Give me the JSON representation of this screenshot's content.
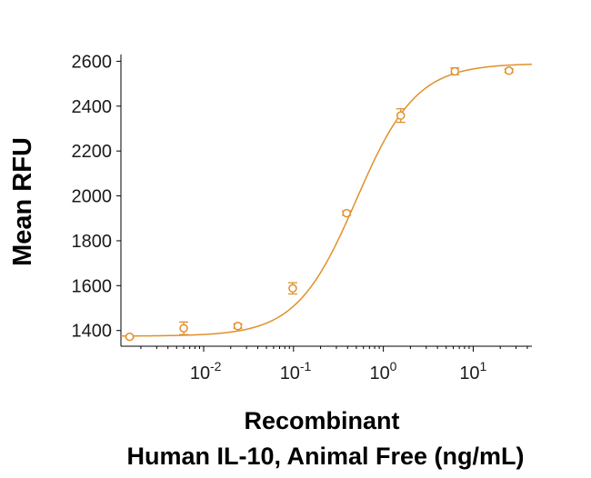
{
  "chart_data": {
    "type": "scatter",
    "x_scale": "log",
    "xlabel_line1": "Recombinant",
    "xlabel_line2": "Human IL-10, Animal Free (ng/mL)",
    "ylabel": "Mean RFU",
    "xlim": [
      0.0012,
      45
    ],
    "ylim": [
      1330,
      2630
    ],
    "y_ticks": [
      1400,
      1600,
      1800,
      2000,
      2200,
      2400,
      2600
    ],
    "y_tick_labels": [
      "1400",
      "1600",
      "1800",
      "2000",
      "2200",
      "2400",
      "2600"
    ],
    "x_ticks": [
      {
        "value": 0.01,
        "base": "10",
        "exp": "-2"
      },
      {
        "value": 0.1,
        "base": "10",
        "exp": "-1"
      },
      {
        "value": 1,
        "base": "10",
        "exp": "0"
      },
      {
        "value": 10,
        "base": "10",
        "exp": "1"
      }
    ],
    "color": "#E0902A",
    "grid": false,
    "points": [
      {
        "x": 0.0015,
        "y": 1372,
        "err": 5
      },
      {
        "x": 0.006,
        "y": 1410,
        "err": 28
      },
      {
        "x": 0.024,
        "y": 1420,
        "err": 10
      },
      {
        "x": 0.098,
        "y": 1588,
        "err": 25
      },
      {
        "x": 0.39,
        "y": 1923,
        "err": 10
      },
      {
        "x": 1.56,
        "y": 2358,
        "err": 30
      },
      {
        "x": 6.25,
        "y": 2555,
        "err": 15
      },
      {
        "x": 25,
        "y": 2558,
        "err": 8
      }
    ],
    "fit": {
      "model": "4PL",
      "bottom": 1375,
      "top": 2590,
      "ec50": 0.5,
      "hill": 1.3
    }
  }
}
